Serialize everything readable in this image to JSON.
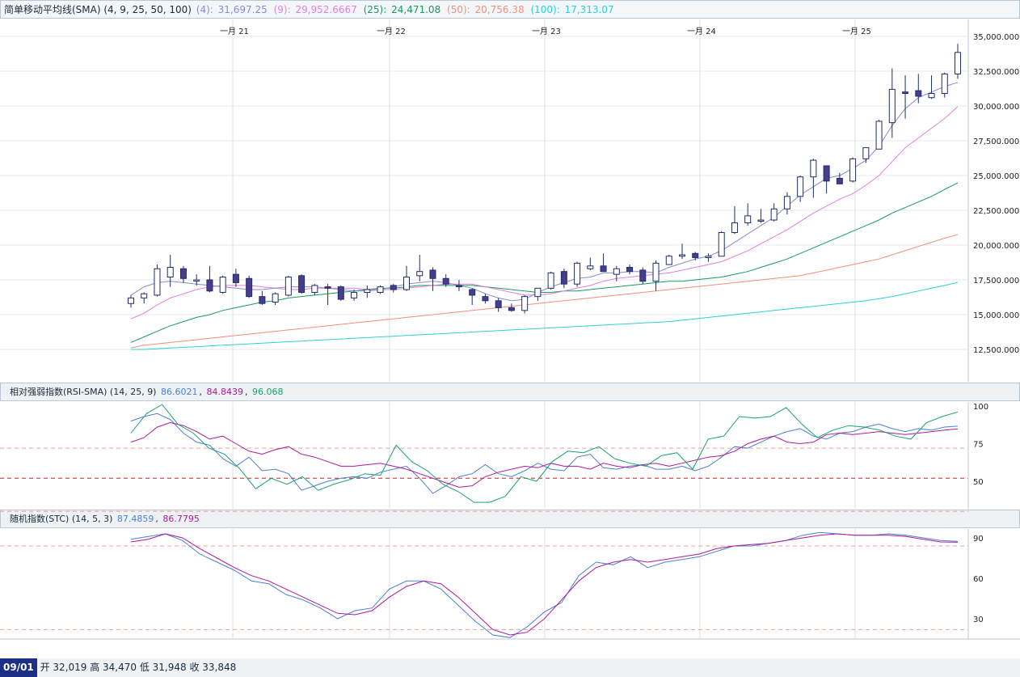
{
  "price_panel": {
    "title": "简单移动平均线(SMA) (4, 9, 25, 50, 100)",
    "legend": [
      {
        "label": "(4):",
        "value": "31,697.25",
        "color": "#8a8ad0"
      },
      {
        "label": "(9):",
        "value": "29,952.6667",
        "color": "#e27ee0"
      },
      {
        "label": "(25):",
        "value": "24,471.08",
        "color": "#1a9a5a"
      },
      {
        "label": "(50):",
        "value": "20,756.38",
        "color": "#f0907a"
      },
      {
        "label": "(100):",
        "value": "17,313.07",
        "color": "#2ed0d0"
      }
    ]
  },
  "rsi_panel": {
    "title": "相对强弱指数(RSI-SMA) (14, 25, 9)",
    "legend": [
      {
        "value": "86.6021",
        "color": "#4a7fd6"
      },
      {
        "value": "84.8439",
        "color": "#b0199a"
      },
      {
        "value": "96.068",
        "color": "#1aa070"
      }
    ]
  },
  "stc_panel": {
    "title": "随机指数(STC) (14, 5, 3)",
    "legend": [
      {
        "value": "87.4859",
        "color": "#4a7fd6"
      },
      {
        "value": "86.7795",
        "color": "#b0199a"
      }
    ]
  },
  "footer": {
    "date": "09/01",
    "ohlc_text": "开 32,019 高 34,470 低 31,948 收 33,848"
  },
  "chart_data": [
    {
      "type": "candlestick",
      "x_tick_labels": [
        "一月 21",
        "一月 22",
        "一月 23",
        "一月 24",
        "一月 25"
      ],
      "y_tick_labels": [
        "12,500.0000",
        "15,000.0000",
        "17,500.0000",
        "20,000.0000",
        "22,500.0000",
        "25,000.0000",
        "27,500.0000",
        "30,000.0000",
        "32,500.0000",
        "35,000.0000"
      ],
      "ylim": [
        10000,
        35500
      ],
      "candles": [
        [
          15800,
          16400,
          15500,
          16200
        ],
        [
          16200,
          16600,
          15800,
          16500
        ],
        [
          16400,
          18600,
          16300,
          18300
        ],
        [
          17700,
          19300,
          17000,
          18400
        ],
        [
          18300,
          18500,
          17300,
          17600
        ],
        [
          17500,
          17900,
          17100,
          17500
        ],
        [
          17500,
          18500,
          16600,
          16700
        ],
        [
          16600,
          17800,
          16500,
          17700
        ],
        [
          17900,
          18300,
          17000,
          17300
        ],
        [
          17600,
          17800,
          16200,
          16300
        ],
        [
          16300,
          16700,
          15700,
          15800
        ],
        [
          15900,
          16600,
          15700,
          16500
        ],
        [
          16400,
          17800,
          16300,
          17700
        ],
        [
          17800,
          17900,
          16500,
          16600
        ],
        [
          16600,
          17200,
          16400,
          17100
        ],
        [
          17000,
          17200,
          15700,
          16900
        ],
        [
          17000,
          17100,
          16000,
          16100
        ],
        [
          16200,
          16800,
          16000,
          16600
        ],
        [
          16600,
          17100,
          16200,
          16800
        ],
        [
          16600,
          17100,
          16500,
          17000
        ],
        [
          17100,
          17200,
          16600,
          16800
        ],
        [
          16800,
          18500,
          16700,
          17700
        ],
        [
          17800,
          19300,
          17400,
          18100
        ],
        [
          18200,
          18400,
          16700,
          17600
        ],
        [
          17600,
          17900,
          17000,
          17200
        ],
        [
          17100,
          17500,
          16700,
          17000
        ],
        [
          16800,
          16900,
          15700,
          16400
        ],
        [
          16300,
          16500,
          15800,
          16000
        ],
        [
          16000,
          16200,
          15200,
          15500
        ],
        [
          15500,
          15800,
          15200,
          15300
        ],
        [
          15300,
          16400,
          15100,
          16300
        ],
        [
          16300,
          16900,
          16000,
          16900
        ],
        [
          16900,
          18100,
          16800,
          18000
        ],
        [
          18100,
          18300,
          16900,
          17200
        ],
        [
          17200,
          18800,
          17000,
          18700
        ],
        [
          18300,
          19100,
          18200,
          18500
        ],
        [
          18500,
          19400,
          18100,
          18100
        ],
        [
          17900,
          18500,
          17400,
          18300
        ],
        [
          18400,
          18600,
          17900,
          18100
        ],
        [
          18200,
          18400,
          17200,
          17400
        ],
        [
          17400,
          18900,
          16700,
          18700
        ],
        [
          18600,
          19300,
          18600,
          19200
        ],
        [
          19200,
          20100,
          19000,
          19300
        ],
        [
          19400,
          19500,
          18900,
          19100
        ],
        [
          19100,
          19400,
          18800,
          19200
        ],
        [
          19200,
          21000,
          19200,
          20900
        ],
        [
          20900,
          22800,
          20800,
          21600
        ],
        [
          21600,
          23000,
          21400,
          22100
        ],
        [
          21800,
          22600,
          21600,
          21800
        ],
        [
          21800,
          23000,
          21700,
          22600
        ],
        [
          22600,
          23800,
          22200,
          23500
        ],
        [
          23500,
          25000,
          23100,
          24900
        ],
        [
          24900,
          26200,
          23400,
          26100
        ],
        [
          25700,
          25700,
          23700,
          24600
        ],
        [
          24800,
          25200,
          24500,
          24400
        ],
        [
          24600,
          26300,
          24500,
          26200
        ],
        [
          26200,
          27000,
          25900,
          27000
        ],
        [
          26900,
          29000,
          26900,
          28900
        ],
        [
          28800,
          32700,
          27700,
          31200
        ],
        [
          31000,
          32200,
          29100,
          30900
        ],
        [
          31100,
          32300,
          30200,
          30700
        ],
        [
          30600,
          32200,
          30500,
          30900
        ],
        [
          30900,
          32400,
          30600,
          32300
        ],
        [
          32300,
          34470,
          31948,
          33848
        ]
      ],
      "sma_4": [
        16400,
        17000,
        17300,
        17400,
        17300,
        17200,
        17100,
        17000,
        16900,
        16800,
        16800,
        16900,
        17000,
        17000,
        17000,
        16900,
        16800,
        16700,
        16700,
        16800,
        17000,
        17200,
        17300,
        17400,
        17300,
        17100,
        16900,
        16500,
        16200,
        16000,
        16100,
        16600,
        17000,
        17300,
        17600,
        17700,
        18000,
        18000,
        18100,
        18100,
        18000,
        18400,
        18700,
        19000,
        19200,
        19600,
        20200,
        20800,
        21400,
        22000,
        22800,
        23600,
        24200,
        24800,
        25000,
        25500,
        26100,
        27100,
        28600,
        29800,
        30600,
        31000,
        31400,
        31700
      ],
      "sma_9": [
        14700,
        15100,
        15700,
        16200,
        16500,
        16800,
        17000,
        17100,
        17100,
        17100,
        17000,
        16900,
        16800,
        16800,
        16900,
        16900,
        16900,
        16900,
        16800,
        16800,
        16800,
        16900,
        17000,
        17100,
        17200,
        17200,
        17200,
        17000,
        16800,
        16600,
        16400,
        16400,
        16500,
        16700,
        16900,
        17100,
        17400,
        17600,
        17700,
        17800,
        17900,
        18000,
        18200,
        18400,
        18600,
        18800,
        19200,
        19600,
        20100,
        20600,
        21100,
        21700,
        22300,
        22800,
        23300,
        23700,
        24300,
        25000,
        26000,
        27000,
        27700,
        28400,
        29100,
        29952.6667
      ],
      "sma_25": [
        13000,
        13400,
        13800,
        14200,
        14500,
        14800,
        15000,
        15300,
        15500,
        15700,
        15900,
        16000,
        16200,
        16300,
        16400,
        16500,
        16600,
        16700,
        16800,
        16900,
        16900,
        17000,
        17100,
        17100,
        17100,
        17100,
        17100,
        17000,
        16900,
        16800,
        16700,
        16600,
        16600,
        16700,
        16700,
        16800,
        16900,
        17000,
        17100,
        17200,
        17300,
        17400,
        17400,
        17500,
        17600,
        17700,
        17900,
        18100,
        18400,
        18700,
        19000,
        19400,
        19800,
        20200,
        20600,
        21000,
        21400,
        21800,
        22300,
        22700,
        23100,
        23500,
        24000,
        24471.08
      ],
      "sma_50": [
        12600,
        12800,
        12900,
        13000,
        13100,
        13200,
        13300,
        13400,
        13500,
        13600,
        13700,
        13800,
        13900,
        14000,
        14100,
        14200,
        14300,
        14400,
        14500,
        14600,
        14700,
        14800,
        14900,
        15000,
        15100,
        15200,
        15300,
        15400,
        15500,
        15600,
        15700,
        15800,
        15900,
        16000,
        16100,
        16200,
        16300,
        16400,
        16500,
        16600,
        16700,
        16800,
        16900,
        17000,
        17100,
        17200,
        17300,
        17400,
        17500,
        17600,
        17700,
        17800,
        18000,
        18200,
        18400,
        18600,
        18800,
        19000,
        19300,
        19600,
        19900,
        20200,
        20500,
        20756.38
      ],
      "sma_100": [
        12500,
        12500,
        12550,
        12600,
        12650,
        12700,
        12750,
        12800,
        12850,
        12900,
        12950,
        13000,
        13050,
        13100,
        13150,
        13200,
        13250,
        13300,
        13350,
        13400,
        13450,
        13500,
        13550,
        13600,
        13650,
        13700,
        13750,
        13800,
        13850,
        13900,
        13950,
        14000,
        14050,
        14100,
        14150,
        14200,
        14250,
        14300,
        14350,
        14400,
        14450,
        14500,
        14600,
        14700,
        14800,
        14900,
        15000,
        15100,
        15200,
        15300,
        15400,
        15500,
        15600,
        15700,
        15800,
        15900,
        16000,
        16150,
        16300,
        16500,
        16700,
        16900,
        17100,
        17313.07
      ]
    },
    {
      "type": "line",
      "title": "相对强弱指数(RSI-SMA) (14, 25, 9)",
      "y_tick_labels": [
        "50",
        "75",
        "100"
      ],
      "ylim": [
        30,
        105
      ],
      "reference_lines": [
        72,
        52,
        30
      ],
      "series": [
        {
          "name": "86.6021",
          "values": [
            90,
            93,
            95,
            91,
            82,
            76,
            74,
            65,
            60,
            66,
            57,
            58,
            55,
            44,
            47,
            50,
            52,
            53,
            52,
            56,
            58,
            60,
            52,
            42,
            47,
            53,
            55,
            61,
            55,
            53,
            57,
            62,
            58,
            57,
            66,
            68,
            59,
            58,
            60,
            61,
            58,
            58,
            60,
            57,
            60,
            66,
            73,
            72,
            76,
            80,
            83,
            85,
            80,
            78,
            82,
            83,
            86,
            88,
            85,
            83,
            85,
            84,
            86,
            86.6021
          ]
        },
        {
          "name": "84.8439",
          "values": [
            76,
            79,
            86,
            89,
            87,
            83,
            78,
            80,
            75,
            70,
            68,
            71,
            73,
            68,
            66,
            63,
            60,
            60,
            61,
            62,
            60,
            58,
            55,
            52,
            49,
            46,
            47,
            53,
            56,
            58,
            60,
            59,
            62,
            60,
            60,
            58,
            62,
            60,
            59,
            61,
            62,
            60,
            62,
            64,
            66,
            67,
            70,
            75,
            78,
            80,
            76,
            75,
            76,
            81,
            82,
            81,
            82,
            83,
            82,
            81,
            82,
            83,
            84,
            84.8439
          ]
        },
        {
          "name": "96.068",
          "values": [
            82,
            95,
            101,
            88,
            82,
            72,
            68,
            58,
            45,
            52,
            48,
            53,
            44,
            48,
            51,
            55,
            54,
            74,
            63,
            57,
            48,
            43,
            36,
            36,
            40,
            53,
            50,
            63,
            70,
            69,
            73,
            65,
            62,
            60,
            67,
            69,
            58,
            78,
            80,
            93,
            92,
            93,
            99,
            88,
            79,
            84,
            87,
            86,
            84,
            80,
            78,
            89,
            93,
            96.068
          ]
        }
      ]
    },
    {
      "type": "line",
      "title": "随机指数(STC) (14, 5, 3)",
      "y_tick_labels": [
        "30",
        "60",
        "90"
      ],
      "ylim": [
        15,
        98
      ],
      "reference_lines": [
        84,
        22
      ],
      "series": [
        {
          "name": "87.4859",
          "values": [
            89,
            91,
            93,
            88,
            78,
            72,
            66,
            58,
            56,
            48,
            44,
            38,
            30,
            36,
            38,
            52,
            58,
            58,
            52,
            40,
            28,
            18,
            16,
            24,
            35,
            42,
            62,
            72,
            70,
            76,
            68,
            72,
            74,
            76,
            80,
            84,
            84,
            86,
            88,
            92,
            94,
            93,
            92,
            92,
            93,
            92,
            90,
            88,
            87.4859
          ]
        },
        {
          "name": "86.7795",
          "values": [
            87,
            89,
            93,
            90,
            82,
            75,
            68,
            62,
            58,
            52,
            46,
            40,
            34,
            33,
            36,
            46,
            54,
            58,
            56,
            46,
            34,
            22,
            18,
            20,
            30,
            44,
            58,
            68,
            72,
            74,
            72,
            74,
            76,
            78,
            82,
            84,
            85,
            86,
            88,
            90,
            92,
            93,
            92,
            92,
            92,
            91,
            89,
            87,
            86.7795
          ]
        }
      ]
    }
  ]
}
